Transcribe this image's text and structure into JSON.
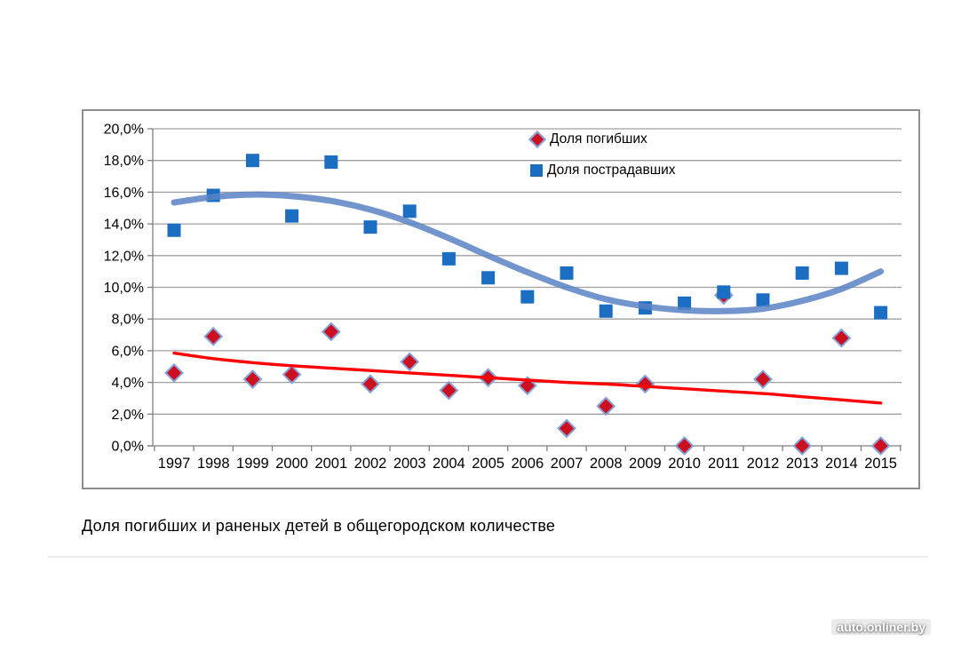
{
  "page": {
    "caption": "Доля погибших и раненых детей в общегородском количестве",
    "watermark": "auto.onliner.by"
  },
  "colors": {
    "fatal_marker": "#cc1021",
    "fatal_marker_edge": "#84a2d8",
    "fatal_trend": "#fe0000",
    "injured_marker": "#1b6ec2",
    "injured_trend": "#5b82c4",
    "gridline": "#a0a0a0",
    "axis": "#7f7f7f",
    "frame_border": "#8d8d8d",
    "text": "#000000"
  },
  "chart_data": {
    "type": "scatter",
    "title": "",
    "xlabel": "",
    "ylabel": "",
    "categories": [
      1997,
      1998,
      1999,
      2000,
      2001,
      2002,
      2003,
      2004,
      2005,
      2006,
      2007,
      2008,
      2009,
      2010,
      2011,
      2012,
      2013,
      2014,
      2015
    ],
    "y_axis": {
      "min": 0,
      "max": 20,
      "step": 2,
      "tick_labels": [
        "0,0%",
        "2,0%",
        "4,0%",
        "6,0%",
        "8,0%",
        "10,0%",
        "12,0%",
        "14,0%",
        "16,0%",
        "18,0%",
        "20,0%"
      ]
    },
    "grid": "horizontal",
    "legend_position": "inside-top-right",
    "series": [
      {
        "id": "fatal",
        "name": "Доля погибших",
        "marker": "diamond",
        "values": [
          4.6,
          6.9,
          4.2,
          4.5,
          7.2,
          3.9,
          5.3,
          3.5,
          4.3,
          3.8,
          1.1,
          2.5,
          3.9,
          0.0,
          9.5,
          4.2,
          0.0,
          6.8,
          0.0
        ],
        "trend": {
          "type": "power",
          "values": [
            5.85,
            5.5,
            5.25,
            5.05,
            4.9,
            4.75,
            4.6,
            4.45,
            4.3,
            4.15,
            4.0,
            3.9,
            3.75,
            3.6,
            3.45,
            3.3,
            3.1,
            2.9,
            2.7
          ]
        }
      },
      {
        "id": "injured",
        "name": "Доля пострадавших",
        "marker": "square",
        "values": [
          13.6,
          15.8,
          18.0,
          14.5,
          17.9,
          13.8,
          14.8,
          11.8,
          10.6,
          9.4,
          10.9,
          8.5,
          8.7,
          9.0,
          9.7,
          9.2,
          10.9,
          11.2,
          8.4
        ],
        "trend": {
          "type": "polynomial",
          "values": [
            15.35,
            15.7,
            15.85,
            15.75,
            15.45,
            14.9,
            14.1,
            13.1,
            12.0,
            10.95,
            10.0,
            9.25,
            8.8,
            8.55,
            8.5,
            8.65,
            9.15,
            9.9,
            11.0
          ]
        }
      }
    ]
  }
}
